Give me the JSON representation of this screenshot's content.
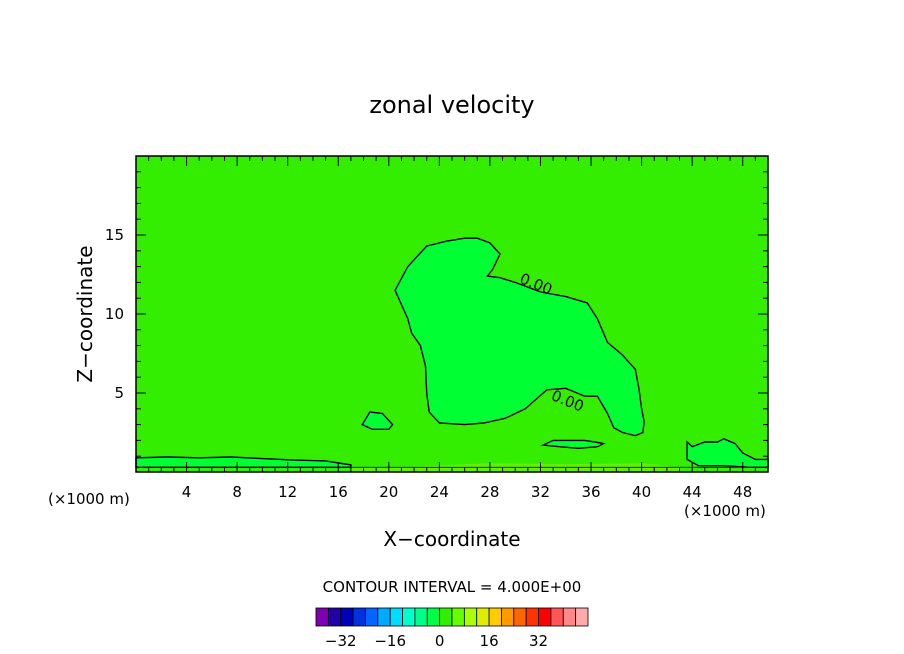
{
  "chart_data": {
    "type": "heatmap",
    "title": "zonal velocity",
    "xlabel": "X−coordinate",
    "ylabel": "Z−coordinate",
    "x_unit_left": "(×1000 m)",
    "x_unit_right": "(×1000 m)",
    "xlim": [
      0,
      50
    ],
    "ylim": [
      0,
      20
    ],
    "x_ticks": [
      4,
      8,
      12,
      16,
      20,
      24,
      28,
      32,
      36,
      40,
      44,
      48
    ],
    "x_tick_labels": [
      "4",
      "8",
      "12",
      "16",
      "20",
      "24",
      "28",
      "32",
      "36",
      "40",
      "44",
      "48"
    ],
    "y_ticks": [
      5,
      10,
      15
    ],
    "y_tick_labels": [
      "5",
      "10",
      "15"
    ],
    "background_color": "#33ee00",
    "contours": [
      {
        "label": "0.00",
        "fill": "#00ff33",
        "label_positions": [
          [
            31.5,
            11.6
          ],
          [
            34.0,
            4.2
          ]
        ],
        "points": [
          [
            20.5,
            11.5
          ],
          [
            21.5,
            13.0
          ],
          [
            23.0,
            14.3
          ],
          [
            24.5,
            14.6
          ],
          [
            26.0,
            14.8
          ],
          [
            27.0,
            14.8
          ],
          [
            28.0,
            14.5
          ],
          [
            28.8,
            13.8
          ],
          [
            28.2,
            12.8
          ],
          [
            27.8,
            12.4
          ],
          [
            28.8,
            12.3
          ],
          [
            30.0,
            12.0
          ],
          [
            32.0,
            11.4
          ],
          [
            34.0,
            11.1
          ],
          [
            35.7,
            10.7
          ],
          [
            36.5,
            9.7
          ],
          [
            37.3,
            8.2
          ],
          [
            38.5,
            7.4
          ],
          [
            39.5,
            6.5
          ],
          [
            39.8,
            5.2
          ],
          [
            40.0,
            4.0
          ],
          [
            40.2,
            3.2
          ],
          [
            40.1,
            2.5
          ],
          [
            39.5,
            2.3
          ],
          [
            38.5,
            2.5
          ],
          [
            37.8,
            2.8
          ],
          [
            37.3,
            3.7
          ],
          [
            36.5,
            4.8
          ],
          [
            35.5,
            4.8
          ],
          [
            34.0,
            5.3
          ],
          [
            32.5,
            5.2
          ],
          [
            31.5,
            4.5
          ],
          [
            30.8,
            4.0
          ],
          [
            29.2,
            3.4
          ],
          [
            27.5,
            3.1
          ],
          [
            26.0,
            3.0
          ],
          [
            24.0,
            3.1
          ],
          [
            23.2,
            3.8
          ],
          [
            23.0,
            5.0
          ],
          [
            22.9,
            6.7
          ],
          [
            22.5,
            8.0
          ],
          [
            21.8,
            8.8
          ],
          [
            21.5,
            9.7
          ],
          [
            21.0,
            10.6
          ],
          [
            20.5,
            11.5
          ]
        ]
      },
      {
        "fill": "#00ff33",
        "points": [
          [
            17.9,
            3.0
          ],
          [
            18.5,
            3.8
          ],
          [
            19.5,
            3.7
          ],
          [
            20.3,
            3.0
          ],
          [
            20.0,
            2.7
          ],
          [
            18.7,
            2.7
          ],
          [
            17.9,
            3.0
          ]
        ]
      },
      {
        "fill": "#00ff33",
        "points": [
          [
            32.2,
            1.7
          ],
          [
            33.0,
            2.0
          ],
          [
            34.0,
            2.0
          ],
          [
            35.5,
            2.0
          ],
          [
            36.3,
            1.9
          ],
          [
            37.0,
            1.8
          ],
          [
            36.5,
            1.6
          ],
          [
            35.0,
            1.5
          ],
          [
            33.5,
            1.6
          ],
          [
            32.2,
            1.7
          ]
        ]
      },
      {
        "fill": "#00ff33",
        "points": [
          [
            43.6,
            1.9
          ],
          [
            44.0,
            1.6
          ],
          [
            45.0,
            1.9
          ],
          [
            46.0,
            1.9
          ],
          [
            46.5,
            2.1
          ],
          [
            47.4,
            1.8
          ],
          [
            48.0,
            1.2
          ],
          [
            49.0,
            0.8
          ],
          [
            50.0,
            0.8
          ],
          [
            50.0,
            0.3
          ],
          [
            48.5,
            0.3
          ],
          [
            46.5,
            0.4
          ],
          [
            44.5,
            0.4
          ],
          [
            43.6,
            0.8
          ],
          [
            43.6,
            1.9
          ]
        ]
      },
      {
        "fill": "#00ff33",
        "points": [
          [
            0,
            0.9
          ],
          [
            2.5,
            0.95
          ],
          [
            5,
            0.9
          ],
          [
            7.5,
            0.95
          ],
          [
            10,
            0.85
          ],
          [
            12.5,
            0.75
          ],
          [
            15,
            0.7
          ],
          [
            17,
            0.45
          ],
          [
            17,
            0.3
          ],
          [
            0,
            0.3
          ]
        ]
      }
    ],
    "contour_interval_text": "CONTOUR INTERVAL = 4.000E+00",
    "colorbar": {
      "colors": [
        "#7f00b2",
        "#2200aa",
        "#0000bb",
        "#0033dd",
        "#0066ff",
        "#00aaff",
        "#00ddff",
        "#00ffcc",
        "#00ff88",
        "#00ff44",
        "#33ee00",
        "#66ff00",
        "#aaff00",
        "#ddee00",
        "#ffcc00",
        "#ff9900",
        "#ff6600",
        "#ff3300",
        "#ff0000",
        "#ff5555",
        "#ff8888",
        "#ffaaaa"
      ],
      "tick_values": [
        -32,
        -16,
        0,
        16,
        32
      ],
      "tick_labels": [
        "−32",
        "−16",
        "0",
        "16",
        "32"
      ]
    }
  }
}
